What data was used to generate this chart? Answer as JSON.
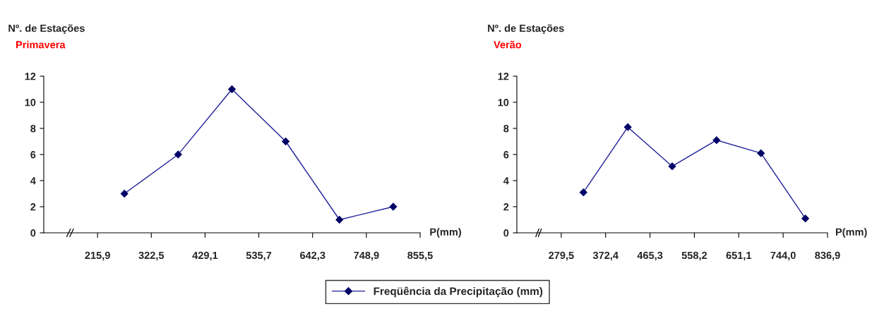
{
  "chart_data": [
    {
      "type": "line",
      "title": "Primavera",
      "ylabel": "Nº. de Estações",
      "xlabel": "P(mm)",
      "x": [
        269.2,
        375.8,
        482.4,
        589.0,
        695.6,
        802.2
      ],
      "series": [
        {
          "name": "Freqüência da Precipitação (mm)",
          "color": "#1f1f99",
          "values": [
            3,
            6,
            11,
            7,
            1,
            2
          ]
        }
      ],
      "xlim": [
        109.3,
        855.5
      ],
      "xticks": [
        {
          "value": 215.9,
          "label": "215,9"
        },
        {
          "value": 322.5,
          "label": "322,5"
        },
        {
          "value": 429.1,
          "label": "429,1"
        },
        {
          "value": 535.7,
          "label": "535,7"
        },
        {
          "value": 642.3,
          "label": "642,3"
        },
        {
          "value": 748.9,
          "label": "748,9"
        },
        {
          "value": 855.5,
          "label": "855,5"
        }
      ],
      "ylim": [
        0,
        12
      ],
      "yticks": [
        0,
        2,
        4,
        6,
        8,
        10,
        12
      ],
      "marker": "diamond",
      "line_style": "solid",
      "grid": false,
      "legend": "bottom"
    },
    {
      "type": "line",
      "title": "Verão",
      "ylabel": "Nº. de Estações",
      "xlabel": "P(mm)",
      "x": [
        325.95,
        418.85,
        511.75,
        604.65,
        697.55,
        790.45
      ],
      "series": [
        {
          "name": "Freqüência da Precipitação (mm)",
          "color": "#1f1f99",
          "values": [
            3.1,
            8.1,
            5.1,
            7.1,
            6.1,
            1.1
          ]
        }
      ],
      "xlim": [
        186.6,
        836.9
      ],
      "xticks": [
        {
          "value": 279.5,
          "label": "279,5"
        },
        {
          "value": 372.4,
          "label": "372,4"
        },
        {
          "value": 465.3,
          "label": "465,3"
        },
        {
          "value": 558.2,
          "label": "558,2"
        },
        {
          "value": 651.1,
          "label": "651,1"
        },
        {
          "value": 744.0,
          "label": "744,0"
        },
        {
          "value": 836.9,
          "label": "836,9"
        }
      ],
      "ylim": [
        0,
        12
      ],
      "yticks": [
        0,
        2,
        4,
        6,
        8,
        10,
        12
      ],
      "marker": "diamond",
      "line_style": "solid",
      "grid": false,
      "legend": "bottom"
    }
  ]
}
